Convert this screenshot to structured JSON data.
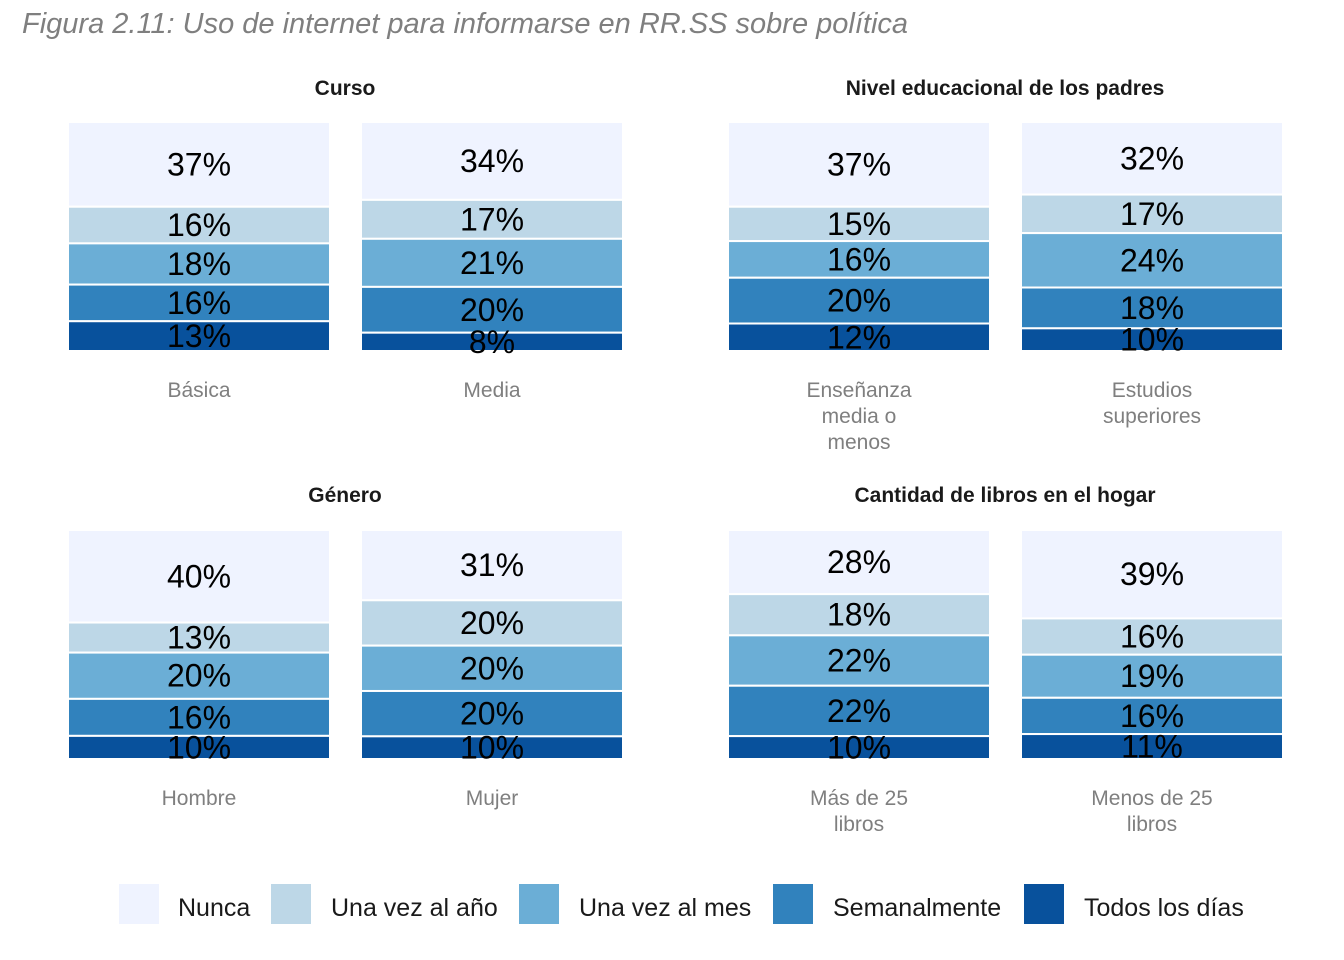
{
  "title": "Figura 2.11: Uso de internet para informarse en RR.SS sobre política",
  "colors": {
    "Nunca": "#eff3ff",
    "Una vez al año": "#bdd7e7",
    "Una vez al mes": "#6baed6",
    "Semanalmente": "#3182bd",
    "Todos los días": "#08519c"
  },
  "chart_data": {
    "type": "bar",
    "stacked": true,
    "normalized": true,
    "legend_position": "bottom",
    "series_order": [
      "Nunca",
      "Una vez al año",
      "Una vez al mes",
      "Semanalmente",
      "Todos los días"
    ],
    "facets": [
      {
        "title": "Curso",
        "categories": [
          {
            "label": "Básica",
            "values": [
              37,
              16,
              18,
              16,
              13
            ],
            "labels": [
              "37%",
              "16%",
              "18%",
              "16%",
              "13%"
            ]
          },
          {
            "label": "Media",
            "values": [
              34,
              17,
              21,
              20,
              8
            ],
            "labels": [
              "34%",
              "17%",
              "21%",
              "20%",
              "8%"
            ]
          }
        ]
      },
      {
        "title": "Nivel educacional de los padres",
        "categories": [
          {
            "label": "Enseñanza media o menos",
            "values": [
              37,
              15,
              16,
              20,
              12
            ],
            "labels": [
              "37%",
              "15%",
              "16%",
              "20%",
              "12%"
            ]
          },
          {
            "label": "Estudios superiores",
            "values": [
              32,
              17,
              24,
              18,
              10
            ],
            "labels": [
              "32%",
              "17%",
              "24%",
              "18%",
              "10%"
            ]
          }
        ]
      },
      {
        "title": "Género",
        "categories": [
          {
            "label": "Hombre",
            "values": [
              40,
              13,
              20,
              16,
              10
            ],
            "labels": [
              "40%",
              "13%",
              "20%",
              "16%",
              "10%"
            ]
          },
          {
            "label": "Mujer",
            "values": [
              31,
              20,
              20,
              20,
              10
            ],
            "labels": [
              "31%",
              "20%",
              "20%",
              "20%",
              "10%"
            ]
          }
        ]
      },
      {
        "title": "Cantidad de libros en el hogar",
        "categories": [
          {
            "label": "Más de 25 libros",
            "values": [
              28,
              18,
              22,
              22,
              10
            ],
            "labels": [
              "28%",
              "18%",
              "22%",
              "22%",
              "10%"
            ]
          },
          {
            "label": "Menos de 25 libros",
            "values": [
              39,
              16,
              19,
              16,
              11
            ],
            "labels": [
              "39%",
              "16%",
              "19%",
              "16%",
              "11%"
            ]
          }
        ]
      }
    ]
  }
}
